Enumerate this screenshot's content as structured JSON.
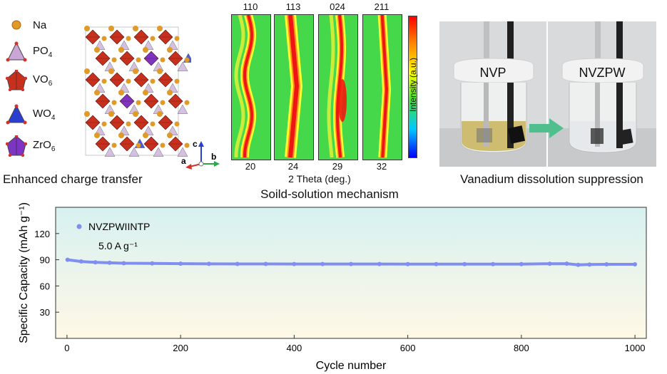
{
  "structure_panel": {
    "legend": [
      {
        "label": "Na",
        "sub": "",
        "icon": "sodium-sphere-icon",
        "color": "#e09a28"
      },
      {
        "label": "PO",
        "sub": "4",
        "icon": "po4-tetrahedron-icon",
        "color": "#c9a6d6"
      },
      {
        "label": "VO",
        "sub": "6",
        "icon": "vo6-octahedron-icon",
        "color": "#c8301e"
      },
      {
        "label": "WO",
        "sub": "4",
        "icon": "wo4-tetrahedron-icon",
        "color": "#2b3fcf"
      },
      {
        "label": "ZrO",
        "sub": "6",
        "icon": "zro6-octahedron-icon",
        "color": "#7d33c4"
      }
    ],
    "axes": {
      "a": "a",
      "b": "b",
      "c": "c"
    },
    "caption": "Enhanced charge transfer"
  },
  "xrd_panel": {
    "peaks": [
      "110",
      "113",
      "024",
      "211"
    ],
    "two_theta": [
      "20",
      "24",
      "29",
      "32"
    ],
    "xlabel": "2 Theta (deg.)",
    "colorbar_label": "Intensity (a.u.)",
    "caption": "Soild-solution mechanism"
  },
  "photo_panel": {
    "left_label": "NVP",
    "right_label": "NVZPW",
    "caption": "Vanadium dissolution suppression",
    "arrow_color": "#4fc08d"
  },
  "chart_data": {
    "type": "scatter",
    "xlabel": "Cycle number",
    "ylabel": "Specific Capacity (mAh g⁻¹)",
    "xlim": [
      -20,
      1020
    ],
    "ylim": [
      0,
      150
    ],
    "xticks": [
      0,
      200,
      400,
      600,
      800,
      1000
    ],
    "yticks": [
      30,
      60,
      90,
      120
    ],
    "grid": false,
    "legend_position": "top-left",
    "annotation": "5.0 A g⁻¹",
    "series": [
      {
        "name": "NVZPWIINTP",
        "color": "#7f8ef0",
        "x": [
          1,
          25,
          50,
          75,
          100,
          150,
          200,
          250,
          300,
          350,
          400,
          450,
          500,
          550,
          600,
          650,
          700,
          750,
          800,
          850,
          880,
          900,
          920,
          950,
          1000
        ],
        "y": [
          90,
          88,
          87,
          86.5,
          86,
          85.8,
          85.5,
          85.3,
          85.2,
          85.2,
          85.1,
          85.1,
          85.1,
          85.1,
          85,
          85,
          85,
          85,
          85,
          85.4,
          85.5,
          84.2,
          84.5,
          84.8,
          84.8
        ]
      }
    ]
  }
}
